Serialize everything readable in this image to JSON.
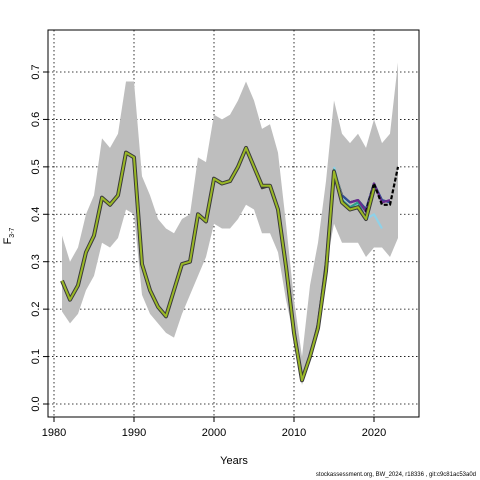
{
  "chart_data": {
    "type": "line",
    "xlabel": "Years",
    "ylabel": "F",
    "ylabel_sub": "3-7",
    "xlim": [
      1980,
      2025
    ],
    "ylim": [
      0,
      0.7
    ],
    "xticks": [
      1980,
      1990,
      2000,
      2010,
      2020
    ],
    "yticks": [
      0.0,
      0.1,
      0.2,
      0.3,
      0.4,
      0.5,
      0.6,
      0.7
    ],
    "ytick_labels": [
      "0.0",
      "0.1",
      "0.2",
      "0.3",
      "0.4",
      "0.5",
      "0.6",
      "0.7"
    ],
    "grid": true,
    "band_color": "#bebebe",
    "band": {
      "x": [
        1981,
        1982,
        1983,
        1984,
        1985,
        1986,
        1987,
        1988,
        1989,
        1990,
        1991,
        1992,
        1993,
        1994,
        1995,
        1996,
        1997,
        1998,
        1999,
        2000,
        2001,
        2002,
        2003,
        2004,
        2005,
        2006,
        2007,
        2008,
        2009,
        2010,
        2011,
        2012,
        2013,
        2014,
        2015,
        2016,
        2017,
        2018,
        2019,
        2020,
        2021,
        2022,
        2023
      ],
      "upper": [
        0.355,
        0.3,
        0.33,
        0.4,
        0.44,
        0.56,
        0.54,
        0.57,
        0.68,
        0.68,
        0.48,
        0.44,
        0.39,
        0.37,
        0.36,
        0.39,
        0.4,
        0.52,
        0.51,
        0.61,
        0.6,
        0.61,
        0.64,
        0.68,
        0.64,
        0.58,
        0.59,
        0.53,
        0.38,
        0.22,
        0.1,
        0.25,
        0.34,
        0.47,
        0.64,
        0.57,
        0.55,
        0.57,
        0.54,
        0.6,
        0.55,
        0.57,
        0.72
      ],
      "lower": [
        0.195,
        0.17,
        0.19,
        0.24,
        0.27,
        0.34,
        0.33,
        0.35,
        0.41,
        0.4,
        0.23,
        0.19,
        0.17,
        0.15,
        0.14,
        0.19,
        0.23,
        0.27,
        0.31,
        0.38,
        0.37,
        0.37,
        0.39,
        0.42,
        0.41,
        0.36,
        0.36,
        0.32,
        0.22,
        0.14,
        0.04,
        0.1,
        0.17,
        0.29,
        0.38,
        0.34,
        0.34,
        0.34,
        0.31,
        0.33,
        0.33,
        0.31,
        0.35
      ]
    },
    "series": [
      {
        "color": "#3a3a3a",
        "x": [
          2004,
          2005,
          2006,
          2007,
          2008,
          2009,
          2010,
          2011,
          2012,
          2013,
          2014,
          2015,
          2016,
          2017,
          2018,
          2019,
          2020
        ],
        "y": [
          0.54,
          0.5,
          0.455,
          0.46,
          0.41,
          0.3,
          0.15,
          0.055,
          0.1,
          0.17,
          0.3,
          0.495,
          0.44,
          0.425,
          0.43,
          0.41,
          0.465
        ]
      },
      {
        "color": "#8fd1e8",
        "x": [
          2015,
          2016,
          2017,
          2018,
          2019,
          2020,
          2021
        ],
        "y": [
          0.5,
          0.435,
          0.41,
          0.42,
          0.39,
          0.4,
          0.37
        ]
      },
      {
        "color": "#2ca089",
        "x": [
          2015,
          2016,
          2017,
          2018,
          2019,
          2020,
          2021
        ],
        "y": [
          0.495,
          0.43,
          0.415,
          0.425,
          0.39,
          0.46,
          0.43
        ]
      },
      {
        "color": "#2e4d96",
        "x": [
          2016,
          2017,
          2018,
          2019,
          2020,
          2021,
          2022
        ],
        "y": [
          0.44,
          0.425,
          0.43,
          0.41,
          0.465,
          0.43,
          0.425
        ]
      },
      {
        "color": "#6b2b8f",
        "x": [
          2017,
          2018,
          2019,
          2020,
          2021,
          2022
        ],
        "y": [
          0.425,
          0.43,
          0.405,
          0.465,
          0.425,
          0.43
        ]
      },
      {
        "color": "#000000",
        "dashed": true,
        "x": [
          2019,
          2020,
          2021,
          2022,
          2023
        ],
        "y": [
          0.405,
          0.465,
          0.42,
          0.42,
          0.5
        ]
      },
      {
        "color": "#9ab826",
        "x": [
          1981,
          1982,
          1983,
          1984,
          1985,
          1986,
          1987,
          1988,
          1989,
          1990,
          1991,
          1992,
          1993,
          1994,
          1995,
          1996,
          1997,
          1998,
          1999,
          2000,
          2001,
          2002,
          2003,
          2004,
          2005,
          2006,
          2007,
          2008,
          2009,
          2010,
          2011,
          2012,
          2013,
          2014,
          2015,
          2016,
          2017,
          2018,
          2019,
          2020
        ],
        "y": [
          0.26,
          0.22,
          0.25,
          0.32,
          0.355,
          0.435,
          0.42,
          0.44,
          0.53,
          0.52,
          0.295,
          0.24,
          0.205,
          0.185,
          0.24,
          0.295,
          0.3,
          0.4,
          0.385,
          0.475,
          0.465,
          0.47,
          0.5,
          0.54,
          0.5,
          0.46,
          0.46,
          0.41,
          0.29,
          0.15,
          0.05,
          0.1,
          0.16,
          0.28,
          0.49,
          0.425,
          0.41,
          0.415,
          0.39,
          0.455
        ]
      }
    ],
    "footnote": "stockassessment.org, BW_2024, r18336 , git:c9c81ac53a0d"
  }
}
